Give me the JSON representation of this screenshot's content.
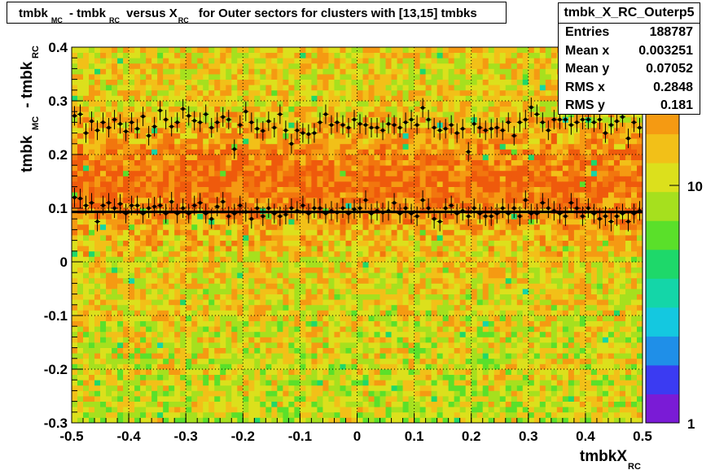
{
  "title": {
    "parts": [
      "tmbk",
      "MC",
      " - tmbk",
      "RC",
      " versus X",
      "RC",
      " for Outer sectors for clusters with [13,15] tmbks"
    ]
  },
  "stats": {
    "name": "tmbk_X_RC_Outerp5",
    "rows": [
      {
        "label": "Entries",
        "value": "188787"
      },
      {
        "label": "Mean x",
        "value": "0.003251"
      },
      {
        "label": "Mean y",
        "value": "0.07052"
      },
      {
        "label": "RMS x",
        "value": "0.2848"
      },
      {
        "label": "RMS y",
        "value": "0.181"
      }
    ]
  },
  "chart_data": {
    "type": "heatmap",
    "xlabel": {
      "main": "tmbkX",
      "sub": "RC"
    },
    "ylabel": {
      "main": "tmbk",
      "sub1": "MC",
      "mid": " - tmbk",
      "sub2": "RC"
    },
    "xlim": [
      -0.5,
      0.5
    ],
    "ylim": [
      -0.3,
      0.4
    ],
    "x_ticks": [
      "-0.5",
      "-0.4",
      "-0.3",
      "-0.2",
      "-0.1",
      "0",
      "0.1",
      "0.2",
      "0.3",
      "0.4",
      "0.5"
    ],
    "y_ticks": [
      "-0.3",
      "-0.2",
      "-0.1",
      "0",
      "0.1",
      "0.2",
      "0.3",
      "0.4"
    ],
    "z_scale": "log",
    "z_ticks": [
      "1",
      "10"
    ],
    "grid": true,
    "fit_line_y": 0.093,
    "upper_profile": {
      "x": [
        -0.495,
        -0.485,
        -0.475,
        -0.465,
        -0.455,
        -0.445,
        -0.435,
        -0.425,
        -0.415,
        -0.405,
        -0.395,
        -0.385,
        -0.375,
        -0.365,
        -0.355,
        -0.345,
        -0.335,
        -0.325,
        -0.315,
        -0.305,
        -0.295,
        -0.285,
        -0.275,
        -0.265,
        -0.255,
        -0.245,
        -0.235,
        -0.225,
        -0.215,
        -0.205,
        -0.195,
        -0.185,
        -0.175,
        -0.165,
        -0.155,
        -0.145,
        -0.135,
        -0.125,
        -0.115,
        -0.105,
        -0.095,
        -0.085,
        -0.075,
        -0.065,
        -0.055,
        -0.045,
        -0.035,
        -0.025,
        -0.015,
        -0.005,
        0.005,
        0.015,
        0.025,
        0.035,
        0.045,
        0.055,
        0.065,
        0.075,
        0.085,
        0.095,
        0.105,
        0.115,
        0.125,
        0.135,
        0.145,
        0.155,
        0.165,
        0.175,
        0.185,
        0.195,
        0.205,
        0.215,
        0.225,
        0.235,
        0.245,
        0.255,
        0.265,
        0.275,
        0.285,
        0.295,
        0.305,
        0.315,
        0.325,
        0.335,
        0.345,
        0.355,
        0.365,
        0.375,
        0.385,
        0.395,
        0.405,
        0.415,
        0.425,
        0.435,
        0.445,
        0.455,
        0.465,
        0.475,
        0.485,
        0.495
      ],
      "y": [
        0.272,
        0.275,
        0.24,
        0.262,
        0.245,
        0.26,
        0.25,
        0.265,
        0.257,
        0.243,
        0.26,
        0.248,
        0.271,
        0.235,
        0.252,
        0.282,
        0.265,
        0.252,
        0.26,
        0.285,
        0.272,
        0.263,
        0.26,
        0.275,
        0.25,
        0.26,
        0.27,
        0.265,
        0.21,
        0.255,
        0.28,
        0.26,
        0.248,
        0.244,
        0.262,
        0.25,
        0.275,
        0.245,
        0.22,
        0.245,
        0.24,
        0.238,
        0.24,
        0.26,
        0.275,
        0.255,
        0.26,
        0.255,
        0.25,
        0.265,
        0.257,
        0.255,
        0.25,
        0.25,
        0.245,
        0.257,
        0.255,
        0.25,
        0.26,
        0.265,
        0.255,
        0.287,
        0.265,
        0.25,
        0.245,
        0.248,
        0.255,
        0.24,
        0.248,
        0.205,
        0.257,
        0.25,
        0.245,
        0.248,
        0.25,
        0.245,
        0.26,
        0.235,
        0.26,
        0.265,
        0.288,
        0.275,
        0.26,
        0.245,
        0.265,
        0.265,
        0.265,
        0.255,
        0.26,
        0.265,
        0.265,
        0.26,
        0.265,
        0.24,
        0.255,
        0.262,
        0.27,
        0.23,
        0.26,
        0.25
      ]
    },
    "lower_profile": {
      "x": [
        -0.495,
        -0.485,
        -0.475,
        -0.465,
        -0.455,
        -0.445,
        -0.435,
        -0.425,
        -0.415,
        -0.405,
        -0.395,
        -0.385,
        -0.375,
        -0.365,
        -0.355,
        -0.345,
        -0.335,
        -0.325,
        -0.315,
        -0.305,
        -0.295,
        -0.285,
        -0.275,
        -0.265,
        -0.255,
        -0.245,
        -0.235,
        -0.225,
        -0.215,
        -0.205,
        -0.195,
        -0.185,
        -0.175,
        -0.165,
        -0.155,
        -0.145,
        -0.135,
        -0.125,
        -0.115,
        -0.105,
        -0.095,
        -0.085,
        -0.075,
        -0.065,
        -0.055,
        -0.045,
        -0.035,
        -0.025,
        -0.015,
        -0.005,
        0.005,
        0.015,
        0.025,
        0.035,
        0.045,
        0.055,
        0.065,
        0.075,
        0.085,
        0.095,
        0.105,
        0.115,
        0.125,
        0.135,
        0.145,
        0.155,
        0.165,
        0.175,
        0.185,
        0.195,
        0.205,
        0.215,
        0.225,
        0.235,
        0.245,
        0.255,
        0.265,
        0.275,
        0.285,
        0.295,
        0.305,
        0.315,
        0.325,
        0.335,
        0.345,
        0.355,
        0.365,
        0.375,
        0.385,
        0.395,
        0.405,
        0.415,
        0.425,
        0.435,
        0.445,
        0.455,
        0.465,
        0.475,
        0.485,
        0.495
      ],
      "y": [
        0.12,
        0.118,
        0.105,
        0.11,
        0.075,
        0.105,
        0.11,
        0.1,
        0.108,
        0.09,
        0.105,
        0.105,
        0.09,
        0.1,
        0.103,
        0.105,
        0.09,
        0.112,
        0.09,
        0.1,
        0.09,
        0.105,
        0.11,
        0.09,
        0.08,
        0.103,
        0.112,
        0.085,
        0.09,
        0.105,
        0.093,
        0.08,
        0.1,
        0.085,
        0.1,
        0.09,
        0.085,
        0.088,
        0.1,
        0.095,
        0.105,
        0.09,
        0.1,
        0.1,
        0.09,
        0.095,
        0.092,
        0.1,
        0.09,
        0.098,
        0.1,
        0.115,
        0.09,
        0.095,
        0.092,
        0.095,
        0.11,
        0.09,
        0.1,
        0.09,
        0.085,
        0.115,
        0.1,
        0.08,
        0.075,
        0.1,
        0.105,
        0.09,
        0.095,
        0.085,
        0.1,
        0.09,
        0.085,
        0.085,
        0.09,
        0.1,
        0.09,
        0.1,
        0.085,
        0.115,
        0.09,
        0.09,
        0.11,
        0.1,
        0.095,
        0.09,
        0.085,
        0.11,
        0.1,
        0.085,
        0.1,
        0.09,
        0.08,
        0.085,
        0.075,
        0.085,
        0.09,
        0.075,
        0.09,
        0.095
      ]
    }
  }
}
